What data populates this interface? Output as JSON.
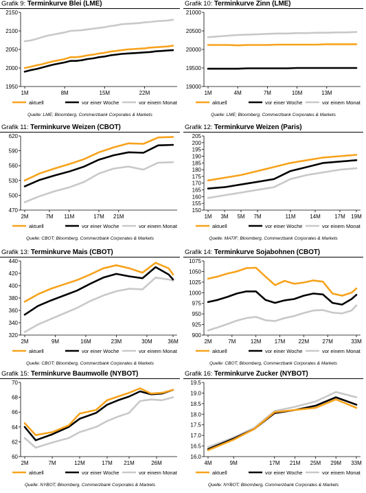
{
  "legend": {
    "aktuell": "aktuell",
    "woche": "vor einer Woche",
    "monat": "vor einem Monat"
  },
  "colors": {
    "aktuell": "#f7a21b",
    "woche": "#000000",
    "monat": "#c8c8c8"
  },
  "panels": [
    {
      "prefix": "Grafik 9:",
      "title": "Terminkurve Blei (LME)",
      "source": "Quelle: LME; Bloomberg, Commerzbank Corporates & Markets"
    },
    {
      "prefix": "Grafik 10:",
      "title": "Terminkurve Zinn (LME)",
      "source": "Quelle: LME; Bloomberg, Commerzbank Corporates & Markets"
    },
    {
      "prefix": "Grafik 11:",
      "title": "Terminkurve Weizen (CBOT)",
      "source": "Quelle: CBOT; Bloomberg, Commerzbank Corporates & Markets"
    },
    {
      "prefix": "Grafik 12:",
      "title": "Terminkurve Weizen (Paris)",
      "source": "Quelle: MATIF; Bloomberg, Commerzbank Corporates & Markets"
    },
    {
      "prefix": "Grafik 13:",
      "title": "Terminkurve Mais (CBOT)",
      "source": "Quelle: CBOT; Bloomberg, Commerzbank Corporates & Markets"
    },
    {
      "prefix": "Grafik 14:",
      "title": "Terminkurve Sojabohnen (CBOT)",
      "source": "Quelle: CBOT; Bloomberg, Commerzbank Corporates & Markets"
    },
    {
      "prefix": "Grafik 15:",
      "title": "Terminkurve Baumwolle (NYBOT)",
      "source": "Quelle: NYBOT; Bloomberg, Commerzbank Corporates & Markets"
    },
    {
      "prefix": "Grafik 16:",
      "title": "Terminkurve Zucker (NYBOT)",
      "source": "Quelle: NYBOT; Bloomberg, Commerzbank Corporates & Markets"
    }
  ],
  "chart_data": [
    {
      "type": "line",
      "title": "Terminkurve Blei (LME)",
      "xlabel": "",
      "ylabel": "",
      "ylim": [
        1950,
        2150
      ],
      "yticks": [
        1950,
        2000,
        2050,
        2100,
        2150
      ],
      "x": [
        1,
        2,
        3,
        4,
        5,
        6,
        7,
        8,
        9,
        10,
        11,
        12,
        13,
        14,
        15,
        16,
        17,
        18,
        19,
        20,
        21,
        22,
        23,
        24,
        25,
        26,
        27
      ],
      "xticks": [
        1,
        8,
        15,
        22
      ],
      "xtick_labels": [
        "1M",
        "8M",
        "15M",
        "22M"
      ],
      "series": [
        {
          "name": "aktuell",
          "values": [
            2000,
            2003,
            2007,
            2010,
            2014,
            2018,
            2021,
            2024,
            2029,
            2029,
            2031,
            2034,
            2036,
            2039,
            2041,
            2044,
            2046,
            2048,
            2050,
            2051,
            2052,
            2053,
            2055,
            2056,
            2057,
            2058,
            2060
          ]
        },
        {
          "name": "vor einer Woche",
          "values": [
            1990,
            1994,
            1997,
            2001,
            2005,
            2009,
            2012,
            2015,
            2019,
            2019,
            2021,
            2024,
            2026,
            2029,
            2031,
            2034,
            2036,
            2038,
            2039,
            2040,
            2041,
            2042,
            2043,
            2045,
            2046,
            2047,
            2048
          ]
        },
        {
          "name": "vor einem Monat",
          "values": [
            2072,
            2074,
            2078,
            2083,
            2087,
            2090,
            2093,
            2096,
            2100,
            2101,
            2102,
            2104,
            2106,
            2108,
            2110,
            2113,
            2115,
            2118,
            2119,
            2120,
            2121,
            2123,
            2124,
            2126,
            2127,
            2128,
            2130
          ]
        }
      ]
    },
    {
      "type": "line",
      "title": "Terminkurve Zinn (LME)",
      "xlabel": "",
      "ylabel": "",
      "ylim": [
        19000,
        21000
      ],
      "yticks": [
        19000,
        19500,
        20000,
        20500,
        21000
      ],
      "x": [
        1,
        2,
        3,
        4,
        5,
        6,
        7,
        8,
        9,
        10,
        11,
        12,
        13,
        14,
        15,
        16
      ],
      "xticks": [
        1,
        4,
        7,
        10,
        13
      ],
      "xtick_labels": [
        "1M",
        "4M",
        "7M",
        "10M",
        "13M"
      ],
      "series": [
        {
          "name": "aktuell",
          "values": [
            20120,
            20120,
            20120,
            20110,
            20120,
            20120,
            20120,
            20130,
            20130,
            20130,
            20130,
            20130,
            20140,
            20140,
            20140,
            20140
          ]
        },
        {
          "name": "vor einer Woche",
          "values": [
            19480,
            19480,
            19480,
            19480,
            19490,
            19490,
            19490,
            19490,
            19490,
            19500,
            19500,
            19500,
            19500,
            19500,
            19500,
            19500
          ]
        },
        {
          "name": "vor einem Monat",
          "values": [
            20330,
            20350,
            20370,
            20390,
            20400,
            20410,
            20420,
            20430,
            20430,
            20440,
            20440,
            20450,
            20450,
            20460,
            20460,
            20470
          ]
        }
      ]
    },
    {
      "type": "line",
      "title": "Terminkurve Weizen (CBOT)",
      "xlabel": "",
      "ylabel": "",
      "ylim": [
        470,
        620
      ],
      "yticks": [
        470,
        500,
        530,
        560,
        590,
        620
      ],
      "x": [
        2,
        5,
        8,
        11,
        14,
        17,
        20,
        23,
        26,
        29,
        32
      ],
      "xticks": [
        2,
        7,
        11,
        17,
        21
      ],
      "xtick_labels": [
        "2M",
        "7M",
        "11M",
        "17M",
        "21M"
      ],
      "series": [
        {
          "name": "aktuell",
          "values": [
            530,
            544,
            554,
            563,
            573,
            587,
            597,
            605,
            604,
            617,
            618
          ]
        },
        {
          "name": "vor einer Woche",
          "values": [
            518,
            531,
            540,
            548,
            558,
            572,
            581,
            587,
            586,
            601,
            602
          ]
        },
        {
          "name": "vor einem Monat",
          "values": [
            486,
            498,
            508,
            516,
            527,
            544,
            554,
            558,
            552,
            566,
            567
          ]
        }
      ]
    },
    {
      "type": "line",
      "title": "Terminkurve Weizen (Paris)",
      "xlabel": "",
      "ylabel": "",
      "ylim": [
        150,
        205
      ],
      "yticks": [
        150,
        155,
        160,
        165,
        170,
        175,
        180,
        185,
        190,
        195,
        200,
        205
      ],
      "x": [
        1,
        3,
        5,
        7,
        9,
        11,
        13,
        15,
        17,
        19
      ],
      "xticks": [
        1,
        3,
        5,
        7,
        11,
        14,
        17,
        19
      ],
      "xtick_labels": [
        "1M",
        "3M",
        "5M",
        "7M",
        "11M",
        "14M",
        "17M",
        "19M"
      ],
      "series": [
        {
          "name": "aktuell",
          "values": [
            172,
            174,
            176,
            179,
            182,
            185,
            187,
            189,
            190,
            191
          ]
        },
        {
          "name": "vor einer Woche",
          "values": [
            166,
            167,
            169,
            171,
            173,
            179,
            182,
            185,
            186,
            187
          ]
        },
        {
          "name": "vor einem Monat",
          "values": [
            159,
            161,
            163,
            165,
            167,
            173,
            176,
            178,
            180,
            181
          ]
        }
      ]
    },
    {
      "type": "line",
      "title": "Terminkurve Mais (CBOT)",
      "xlabel": "",
      "ylabel": "",
      "ylim": [
        320,
        440
      ],
      "yticks": [
        320,
        340,
        360,
        380,
        400,
        420,
        440
      ],
      "x": [
        2,
        5,
        8,
        11,
        14,
        17,
        20,
        23,
        26,
        29,
        32,
        35,
        36
      ],
      "xticks": [
        2,
        9,
        16,
        23,
        30,
        36
      ],
      "xtick_labels": [
        "2M",
        "9M",
        "16M",
        "23M",
        "30M",
        "36M"
      ],
      "series": [
        {
          "name": "aktuell",
          "values": [
            374,
            386,
            395,
            402,
            409,
            418,
            428,
            433,
            428,
            421,
            437,
            428,
            418
          ]
        },
        {
          "name": "vor einer Woche",
          "values": [
            353,
            367,
            376,
            384,
            392,
            403,
            413,
            419,
            415,
            412,
            430,
            418,
            410
          ]
        },
        {
          "name": "vor einem Monat",
          "values": [
            325,
            337,
            346,
            355,
            364,
            375,
            384,
            391,
            395,
            394,
            413,
            410,
            408
          ]
        }
      ]
    },
    {
      "type": "line",
      "title": "Terminkurve Sojabohnen (CBOT)",
      "xlabel": "",
      "ylabel": "",
      "ylim": [
        900,
        1075
      ],
      "yticks": [
        900,
        925,
        950,
        975,
        1000,
        1025,
        1050,
        1075
      ],
      "x": [
        2,
        4,
        6,
        8,
        10,
        12,
        14,
        16,
        18,
        20,
        22,
        24,
        26,
        28,
        30,
        32,
        33
      ],
      "xticks": [
        2,
        7,
        12,
        17,
        22,
        27,
        33
      ],
      "xtick_labels": [
        "2M",
        "7M",
        "12M",
        "17M",
        "22M",
        "27M",
        "33M"
      ],
      "series": [
        {
          "name": "aktuell",
          "values": [
            1033,
            1038,
            1045,
            1050,
            1058,
            1059,
            1038,
            1018,
            1028,
            1021,
            1024,
            1029,
            1026,
            998,
            993,
            1000,
            1010
          ]
        },
        {
          "name": "vor einer Woche",
          "values": [
            978,
            983,
            990,
            998,
            1003,
            1003,
            983,
            976,
            982,
            985,
            993,
            998,
            996,
            976,
            972,
            985,
            995
          ]
        },
        {
          "name": "vor einem Monat",
          "values": [
            911,
            918,
            926,
            934,
            940,
            943,
            935,
            933,
            940,
            945,
            952,
            958,
            959,
            953,
            951,
            958,
            970
          ]
        }
      ]
    },
    {
      "type": "line",
      "title": "Terminkurve Baumwolle (NYBOT)",
      "xlabel": "",
      "ylabel": "",
      "ylim": [
        60,
        70
      ],
      "yticks": [
        60,
        62,
        64,
        66,
        68,
        70
      ],
      "x": [
        2,
        4,
        7,
        10,
        12,
        15,
        17,
        19,
        21,
        23,
        25,
        27,
        29
      ],
      "xticks": [
        2,
        7,
        12,
        17,
        21,
        26
      ],
      "xtick_labels": [
        "2M",
        "7M",
        "12M",
        "17M",
        "21M",
        "26M"
      ],
      "series": [
        {
          "name": "aktuell",
          "values": [
            64.5,
            62.9,
            63.3,
            64.2,
            65.8,
            66.3,
            67.6,
            68.1,
            68.6,
            69.2,
            68.5,
            68.6,
            69.0
          ]
        },
        {
          "name": "vor einer Woche",
          "values": [
            64.0,
            62.2,
            63.0,
            64.0,
            65.1,
            65.9,
            67.0,
            67.6,
            68.1,
            68.8,
            68.4,
            68.5,
            69.0
          ]
        },
        {
          "name": "vor einem Monat",
          "values": [
            62.5,
            61.2,
            61.9,
            62.5,
            63.3,
            64.0,
            64.8,
            65.4,
            65.9,
            67.5,
            67.7,
            67.6,
            68.0
          ]
        }
      ]
    },
    {
      "type": "line",
      "title": "Terminkurve Zucker (NYBOT)",
      "xlabel": "",
      "ylabel": "",
      "ylim": [
        16.0,
        19.5
      ],
      "yticks": [
        16.0,
        16.5,
        17.0,
        17.5,
        18.0,
        18.5,
        19.0,
        19.5
      ],
      "x": [
        4,
        9,
        13,
        17,
        21,
        25,
        29,
        33
      ],
      "xticks": [
        4,
        9,
        17,
        21,
        25,
        29,
        33
      ],
      "xtick_labels": [
        "4M",
        "9M",
        "17M",
        "21M",
        "25M",
        "29M",
        "33M"
      ],
      "series": [
        {
          "name": "aktuell",
          "values": [
            16.3,
            16.8,
            17.3,
            18.1,
            18.2,
            18.3,
            18.7,
            18.3
          ]
        },
        {
          "name": "vor einer Woche",
          "values": [
            16.35,
            16.85,
            17.3,
            18.05,
            18.2,
            18.4,
            18.8,
            18.45
          ]
        },
        {
          "name": "vor einem Monat",
          "values": [
            16.45,
            16.9,
            17.35,
            18.15,
            18.35,
            18.6,
            19.05,
            18.8
          ]
        }
      ]
    }
  ]
}
